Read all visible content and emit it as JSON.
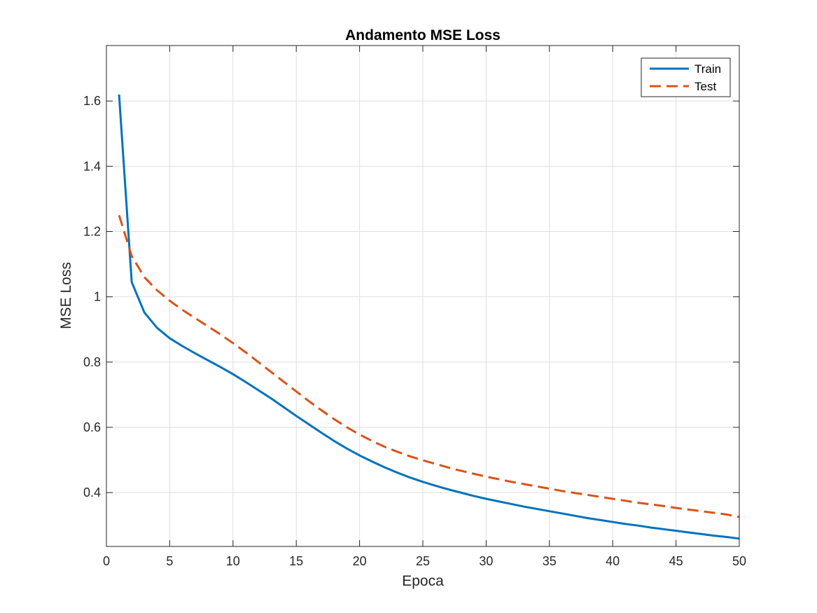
{
  "chart_data": {
    "type": "line",
    "title": "Andamento MSE Loss",
    "xlabel": "Epoca",
    "ylabel": "MSE Loss",
    "xlim": [
      0,
      50
    ],
    "ylim": [
      0.235,
      1.77
    ],
    "xticks": [
      0,
      5,
      10,
      15,
      20,
      25,
      30,
      35,
      40,
      45,
      50
    ],
    "yticks": [
      0.4,
      0.6,
      0.8,
      1,
      1.2,
      1.4,
      1.6
    ],
    "xtick_labels": [
      "0",
      "5",
      "10",
      "15",
      "20",
      "25",
      "30",
      "35",
      "40",
      "45",
      "50"
    ],
    "ytick_labels": [
      "0.4",
      "0.6",
      "0.8",
      "1",
      "1.2",
      "1.4",
      "1.6"
    ],
    "grid": true,
    "legend_position": "top-right",
    "x": [
      1,
      2,
      3,
      4,
      5,
      6,
      7,
      8,
      9,
      10,
      11,
      12,
      13,
      14,
      15,
      16,
      17,
      18,
      19,
      20,
      21,
      22,
      23,
      24,
      25,
      26,
      27,
      28,
      29,
      30,
      31,
      32,
      33,
      34,
      35,
      36,
      37,
      38,
      39,
      40,
      41,
      42,
      43,
      44,
      45,
      46,
      47,
      48,
      49,
      50
    ],
    "series": [
      {
        "name": "Train",
        "color": "#0072BD",
        "style": "solid",
        "values": [
          1.62,
          1.045,
          0.952,
          0.905,
          0.873,
          0.849,
          0.827,
          0.806,
          0.785,
          0.763,
          0.739,
          0.714,
          0.689,
          0.662,
          0.635,
          0.609,
          0.583,
          0.558,
          0.535,
          0.514,
          0.495,
          0.477,
          0.461,
          0.446,
          0.433,
          0.421,
          0.41,
          0.4,
          0.39,
          0.381,
          0.373,
          0.365,
          0.357,
          0.35,
          0.343,
          0.336,
          0.329,
          0.322,
          0.316,
          0.31,
          0.304,
          0.299,
          0.293,
          0.288,
          0.283,
          0.278,
          0.273,
          0.268,
          0.264,
          0.259
        ]
      },
      {
        "name": "Test",
        "color": "#D95319",
        "style": "dashed",
        "values": [
          1.25,
          1.125,
          1.06,
          1.02,
          0.988,
          0.96,
          0.935,
          0.91,
          0.885,
          0.858,
          0.83,
          0.8,
          0.77,
          0.74,
          0.71,
          0.68,
          0.652,
          0.625,
          0.6,
          0.578,
          0.558,
          0.54,
          0.525,
          0.511,
          0.499,
          0.488,
          0.477,
          0.467,
          0.458,
          0.449,
          0.441,
          0.433,
          0.426,
          0.419,
          0.412,
          0.405,
          0.399,
          0.393,
          0.387,
          0.381,
          0.375,
          0.369,
          0.364,
          0.359,
          0.353,
          0.348,
          0.343,
          0.338,
          0.333,
          0.325
        ]
      }
    ]
  }
}
